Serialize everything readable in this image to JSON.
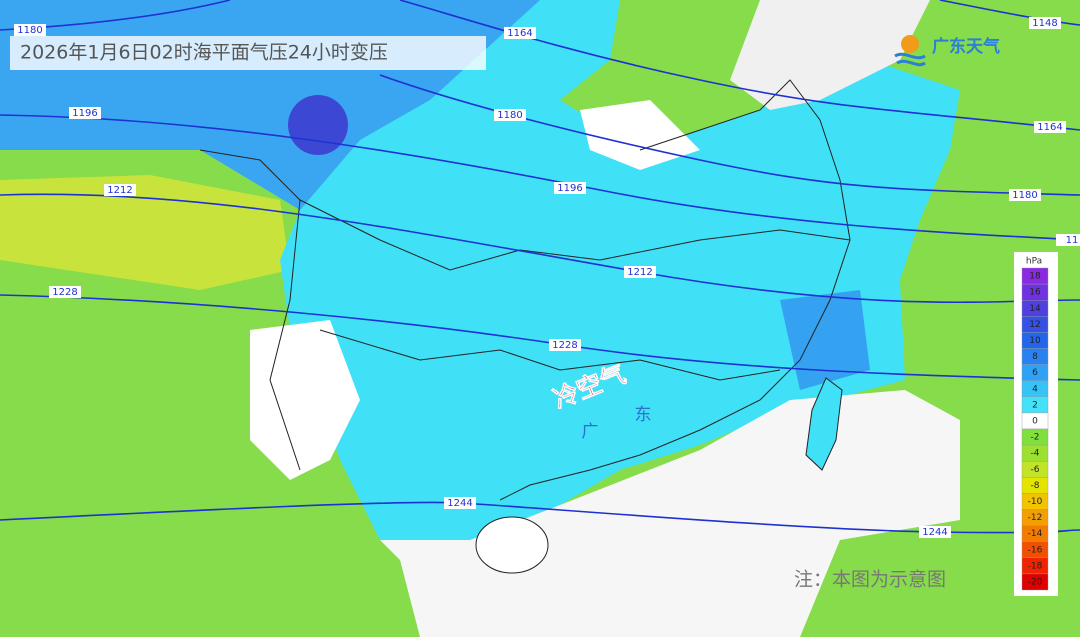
{
  "header": {
    "title": "2026年1月6日02时海平面气压24小时变压"
  },
  "logo": {
    "text": "广东天气"
  },
  "isobars": [
    "1180",
    "1164",
    "1148",
    "1196",
    "1180",
    "1164",
    "1212",
    "1196",
    "1180",
    "11",
    "1212",
    "1228",
    "1228",
    "1244",
    "1244"
  ],
  "annotations": {
    "cold_air": "冷空气",
    "guang": "广",
    "dong": "东",
    "note": "注：本图为示意图"
  },
  "legend": {
    "unit": "hPa",
    "items": [
      {
        "value": 18,
        "color": "#8a2be2"
      },
      {
        "value": 16,
        "color": "#7032e0"
      },
      {
        "value": 14,
        "color": "#5040e0"
      },
      {
        "value": 12,
        "color": "#3552e4"
      },
      {
        "value": 10,
        "color": "#2466ea"
      },
      {
        "value": 8,
        "color": "#2a82f2"
      },
      {
        "value": 6,
        "color": "#2fa2f8"
      },
      {
        "value": 4,
        "color": "#34c4f8"
      },
      {
        "value": 2,
        "color": "#44e2f8"
      },
      {
        "value": 0,
        "color": "#ffffff"
      },
      {
        "value": -2,
        "color": "#82e03e"
      },
      {
        "value": -4,
        "color": "#9ee030"
      },
      {
        "value": -6,
        "color": "#c2e428"
      },
      {
        "value": -8,
        "color": "#e4e400"
      },
      {
        "value": -10,
        "color": "#f2c400"
      },
      {
        "value": -12,
        "color": "#f2a000"
      },
      {
        "value": -14,
        "color": "#f27c00"
      },
      {
        "value": -16,
        "color": "#f25000"
      },
      {
        "value": -18,
        "color": "#f02400"
      },
      {
        "value": -20,
        "color": "#e00000"
      }
    ]
  }
}
